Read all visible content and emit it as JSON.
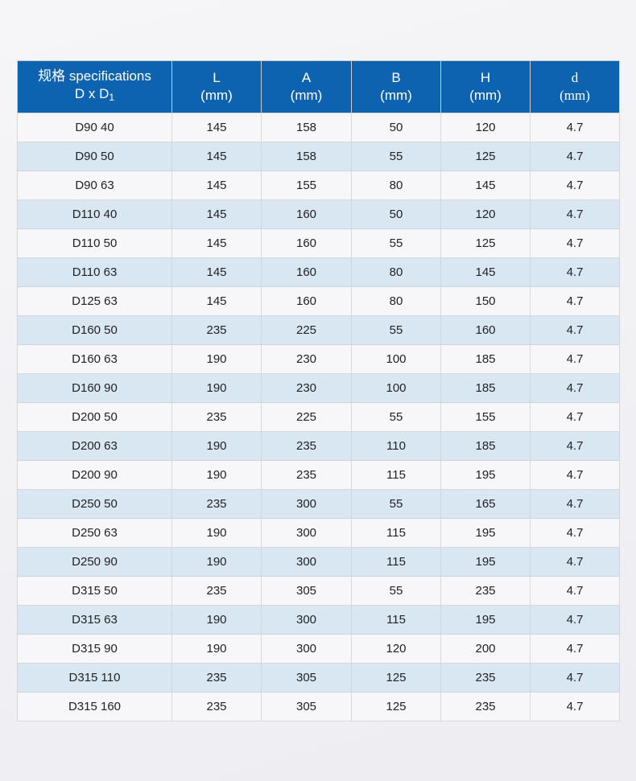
{
  "table": {
    "header": {
      "spec_line1": "规格 specifications",
      "spec_line2_base": "D x D",
      "spec_line2_sub": "1",
      "col_L_label": "L",
      "col_L_unit": "(mm)",
      "col_A_label": "A",
      "col_A_unit": "(mm)",
      "col_B_label": "B",
      "col_B_unit": "(mm)",
      "col_H_label": "H",
      "col_H_unit": "(mm)",
      "col_d_label": "d",
      "col_d_unit": "(mm)"
    },
    "rows": [
      {
        "spec": "D90 40",
        "L": "145",
        "A": "158",
        "B": "50",
        "H": "120",
        "d": "4.7"
      },
      {
        "spec": "D90 50",
        "L": "145",
        "A": "158",
        "B": "55",
        "H": "125",
        "d": "4.7"
      },
      {
        "spec": "D90 63",
        "L": "145",
        "A": "155",
        "B": "80",
        "H": "145",
        "d": "4.7"
      },
      {
        "spec": "D110 40",
        "L": "145",
        "A": "160",
        "B": "50",
        "H": "120",
        "d": "4.7"
      },
      {
        "spec": "D110 50",
        "L": "145",
        "A": "160",
        "B": "55",
        "H": "125",
        "d": "4.7"
      },
      {
        "spec": "D110 63",
        "L": "145",
        "A": "160",
        "B": "80",
        "H": "145",
        "d": "4.7"
      },
      {
        "spec": "D125 63",
        "L": "145",
        "A": "160",
        "B": "80",
        "H": "150",
        "d": "4.7"
      },
      {
        "spec": "D160 50",
        "L": "235",
        "A": "225",
        "B": "55",
        "H": "160",
        "d": "4.7"
      },
      {
        "spec": "D160 63",
        "L": "190",
        "A": "230",
        "B": "100",
        "H": "185",
        "d": "4.7"
      },
      {
        "spec": "D160 90",
        "L": "190",
        "A": "230",
        "B": "100",
        "H": "185",
        "d": "4.7"
      },
      {
        "spec": "D200 50",
        "L": "235",
        "A": "225",
        "B": "55",
        "H": "155",
        "d": "4.7"
      },
      {
        "spec": "D200 63",
        "L": "190",
        "A": "235",
        "B": "110",
        "H": "185",
        "d": "4.7"
      },
      {
        "spec": "D200 90",
        "L": "190",
        "A": "235",
        "B": "115",
        "H": "195",
        "d": "4.7"
      },
      {
        "spec": "D250 50",
        "L": "235",
        "A": "300",
        "B": "55",
        "H": "165",
        "d": "4.7"
      },
      {
        "spec": "D250 63",
        "L": "190",
        "A": "300",
        "B": "115",
        "H": "195",
        "d": "4.7"
      },
      {
        "spec": "D250 90",
        "L": "190",
        "A": "300",
        "B": "115",
        "H": "195",
        "d": "4.7"
      },
      {
        "spec": "D315 50",
        "L": "235",
        "A": "305",
        "B": "55",
        "H": "235",
        "d": "4.7"
      },
      {
        "spec": "D315 63",
        "L": "190",
        "A": "300",
        "B": "115",
        "H": "195",
        "d": "4.7"
      },
      {
        "spec": "D315 90",
        "L": "190",
        "A": "300",
        "B": "120",
        "H": "200",
        "d": "4.7"
      },
      {
        "spec": "D315 110",
        "L": "235",
        "A": "305",
        "B": "125",
        "H": "235",
        "d": "4.7"
      },
      {
        "spec": "D315 160",
        "L": "235",
        "A": "305",
        "B": "125",
        "H": "235",
        "d": "4.7"
      }
    ],
    "colors": {
      "header_background": "#0d63af",
      "header_text": "#ffffff",
      "row_striped_background": "#d9e7f2",
      "row_plain_background": "#f7f7f9",
      "cell_border": "#d7d7dc",
      "body_text": "#222226"
    }
  }
}
